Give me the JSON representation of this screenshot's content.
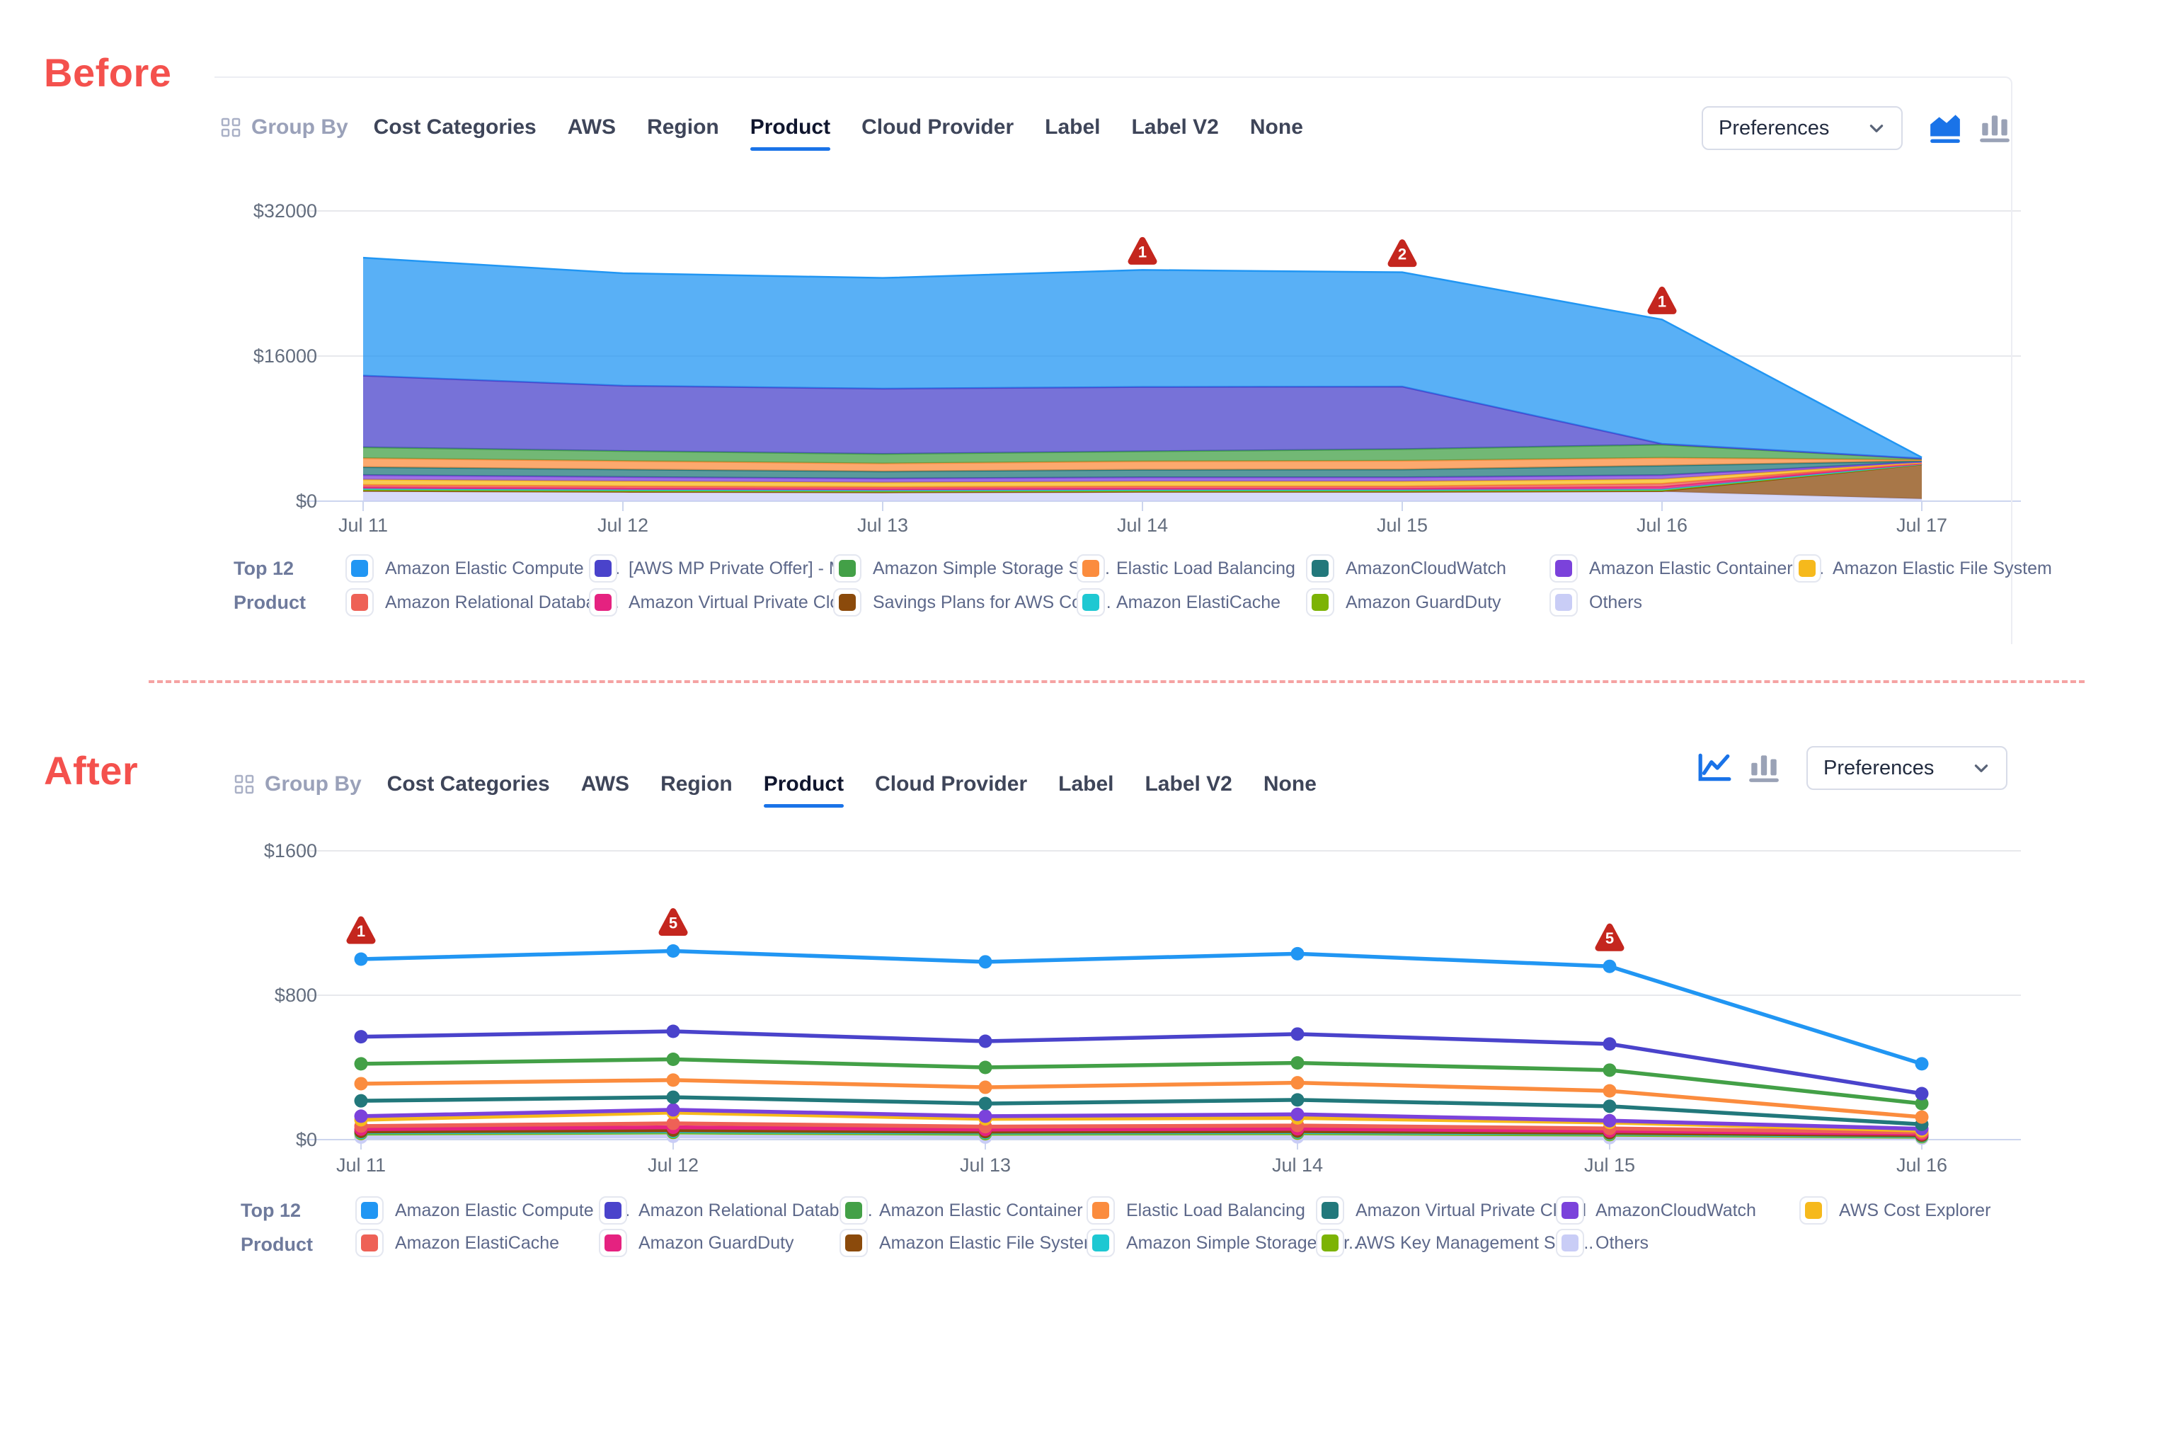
{
  "colors": {
    "accent_blue": "#1A73E8",
    "inactive_icon_gray": "#9AA2B6",
    "alert_red": "#C4261E",
    "section_label_red": "#F4514D",
    "separator_pink": "#F5A3A3"
  },
  "before": {
    "section_label": "Before",
    "header": {
      "group_by_label": "Group By",
      "group_by_icon": "grid-icon",
      "tabs": [
        "Cost Categories",
        "AWS",
        "Region",
        "Product",
        "Cloud Provider",
        "Label",
        "Label V2",
        "None"
      ],
      "active_tab": "Product"
    },
    "controls": {
      "preferences_label": "Preferences",
      "preferences_icon": "chevron-down-icon",
      "icons": [
        {
          "name": "area-chart-icon",
          "active": true
        },
        {
          "name": "bar-chart-icon",
          "active": false
        }
      ]
    },
    "legend_title_lines": [
      "Top 12",
      "Product"
    ],
    "chart_data": {
      "type": "area",
      "stacked": true,
      "title": "",
      "x": [
        "Jul 11",
        "Jul 12",
        "Jul 13",
        "Jul 14",
        "Jul 15",
        "Jul 16",
        "Jul 17"
      ],
      "ylim": [
        0,
        32000
      ],
      "yticks": [
        {
          "value": 0,
          "label": "$0"
        },
        {
          "value": 16000,
          "label": "$16000"
        },
        {
          "value": 32000,
          "label": "$32000"
        }
      ],
      "grid": true,
      "legend_position": "bottom",
      "legend_row_split": 7,
      "series": [
        {
          "name": "Amazon Elastic Compute Cl...",
          "color": "#2196F3",
          "values": [
            13000,
            12400,
            12200,
            12900,
            12600,
            13700,
            110
          ]
        },
        {
          "name": "[AWS MP Private Offer] - M...",
          "color": "#4A43CB",
          "values": [
            7900,
            7200,
            7200,
            7100,
            6900,
            90,
            25
          ]
        },
        {
          "name": "Amazon Simple Storage Ser...",
          "color": "#43A047",
          "values": [
            1200,
            1100,
            1050,
            1100,
            1280,
            1450,
            140
          ]
        },
        {
          "name": "Elastic Load Balancing",
          "color": "#FB8C3E",
          "values": [
            980,
            930,
            880,
            930,
            960,
            870,
            110
          ]
        },
        {
          "name": "AmazonCloudWatch",
          "color": "#22787B",
          "values": [
            880,
            830,
            780,
            830,
            860,
            1050,
            90
          ]
        },
        {
          "name": "Amazon Elastic Container S...",
          "color": "#7B42DB",
          "values": [
            500,
            470,
            440,
            460,
            460,
            430,
            70
          ]
        },
        {
          "name": "Amazon Elastic File System",
          "color": "#F6B91C",
          "values": [
            580,
            550,
            500,
            540,
            540,
            500,
            70
          ]
        },
        {
          "name": "Amazon Relational Databas...",
          "color": "#EE6156",
          "values": [
            260,
            240,
            225,
            235,
            235,
            340,
            55
          ]
        },
        {
          "name": "Amazon Virtual Private Cloud",
          "color": "#E52280",
          "values": [
            160,
            150,
            140,
            145,
            145,
            290,
            45
          ]
        },
        {
          "name": "Savings Plans for AWS Com...",
          "color": "#8B4A0B",
          "values": [
            40,
            40,
            40,
            40,
            40,
            60,
            3800
          ]
        },
        {
          "name": "Amazon ElastiCache",
          "color": "#1EC8D2",
          "values": [
            130,
            120,
            110,
            115,
            115,
            105,
            30
          ]
        },
        {
          "name": "Amazon GuardDuty",
          "color": "#7CB305",
          "values": [
            110,
            100,
            95,
            100,
            100,
            90,
            25
          ]
        },
        {
          "name": "Others",
          "color": "#C9CDF6",
          "values": [
            1100,
            1000,
            950,
            1000,
            1000,
            1050,
            250
          ]
        }
      ],
      "stack_order": [
        "Others",
        "Savings Plans for AWS Com...",
        "Amazon GuardDuty",
        "Amazon ElastiCache",
        "Amazon Virtual Private Cloud",
        "Amazon Relational Databas...",
        "Amazon Elastic File System",
        "Amazon Elastic Container S...",
        "AmazonCloudWatch",
        "Elastic Load Balancing",
        "Amazon Simple Storage Ser...",
        "[AWS MP Private Offer] - M...",
        "Amazon Elastic Compute Cl..."
      ],
      "alerts": [
        {
          "x": "Jul 14",
          "count": 1
        },
        {
          "x": "Jul 15",
          "count": 2
        },
        {
          "x": "Jul 16",
          "count": 1
        }
      ]
    }
  },
  "after": {
    "section_label": "After",
    "header": {
      "group_by_label": "Group By",
      "group_by_icon": "grid-icon",
      "tabs": [
        "Cost Categories",
        "AWS",
        "Region",
        "Product",
        "Cloud Provider",
        "Label",
        "Label V2",
        "None"
      ],
      "active_tab": "Product"
    },
    "controls": {
      "preferences_label": "Preferences",
      "preferences_icon": "chevron-down-icon",
      "icons": [
        {
          "name": "line-chart-icon",
          "active": true
        },
        {
          "name": "bar-chart-icon",
          "active": false
        }
      ]
    },
    "legend_title_lines": [
      "Top 12",
      "Product"
    ],
    "chart_data": {
      "type": "line",
      "stacked": false,
      "title": "",
      "x": [
        "Jul 11",
        "Jul 12",
        "Jul 13",
        "Jul 14",
        "Jul 15",
        "Jul 16"
      ],
      "ylim": [
        0,
        1600
      ],
      "yticks": [
        {
          "value": 0,
          "label": "$0"
        },
        {
          "value": 800,
          "label": "$800"
        },
        {
          "value": 1600,
          "label": "$1600"
        }
      ],
      "grid": true,
      "legend_position": "bottom",
      "legend_row_split": 7,
      "series": [
        {
          "name": "Amazon Elastic Compute Cl...",
          "color": "#2196F3",
          "values": [
            1000,
            1045,
            985,
            1030,
            960,
            420
          ]
        },
        {
          "name": "Amazon Relational Databas...",
          "color": "#4A43CB",
          "values": [
            570,
            600,
            545,
            585,
            530,
            255
          ]
        },
        {
          "name": "Amazon Elastic Container S...",
          "color": "#43A047",
          "values": [
            420,
            445,
            400,
            425,
            385,
            200
          ]
        },
        {
          "name": "Elastic Load Balancing",
          "color": "#FB8C3E",
          "values": [
            310,
            330,
            290,
            315,
            270,
            125
          ]
        },
        {
          "name": "Amazon Virtual Private Cloud",
          "color": "#22787B",
          "values": [
            215,
            235,
            200,
            220,
            185,
            85
          ]
        },
        {
          "name": "AmazonCloudWatch",
          "color": "#7B42DB",
          "values": [
            130,
            165,
            130,
            140,
            105,
            60
          ]
        },
        {
          "name": "AWS Cost Explorer",
          "color": "#F6B91C",
          "values": [
            110,
            150,
            115,
            120,
            95,
            50
          ]
        },
        {
          "name": "Amazon ElastiCache",
          "color": "#EE6156",
          "values": [
            75,
            90,
            72,
            78,
            62,
            40
          ]
        },
        {
          "name": "Amazon GuardDuty",
          "color": "#E52280",
          "values": [
            58,
            68,
            56,
            60,
            48,
            32
          ]
        },
        {
          "name": "Amazon Elastic File System",
          "color": "#8B4A0B",
          "values": [
            45,
            52,
            44,
            47,
            38,
            24
          ]
        },
        {
          "name": "Amazon Simple Storage Ser...",
          "color": "#1EC8D2",
          "values": [
            40,
            46,
            39,
            42,
            34,
            20
          ]
        },
        {
          "name": "AWS Key Management Serv...",
          "color": "#7CB305",
          "values": [
            34,
            40,
            33,
            36,
            28,
            16
          ]
        },
        {
          "name": "Others",
          "color": "#C9CDF6",
          "values": [
            14,
            18,
            14,
            15,
            11,
            7
          ]
        }
      ],
      "alerts": [
        {
          "x": "Jul 11",
          "count": 1
        },
        {
          "x": "Jul 12",
          "count": 5
        },
        {
          "x": "Jul 15",
          "count": 5
        }
      ]
    }
  }
}
